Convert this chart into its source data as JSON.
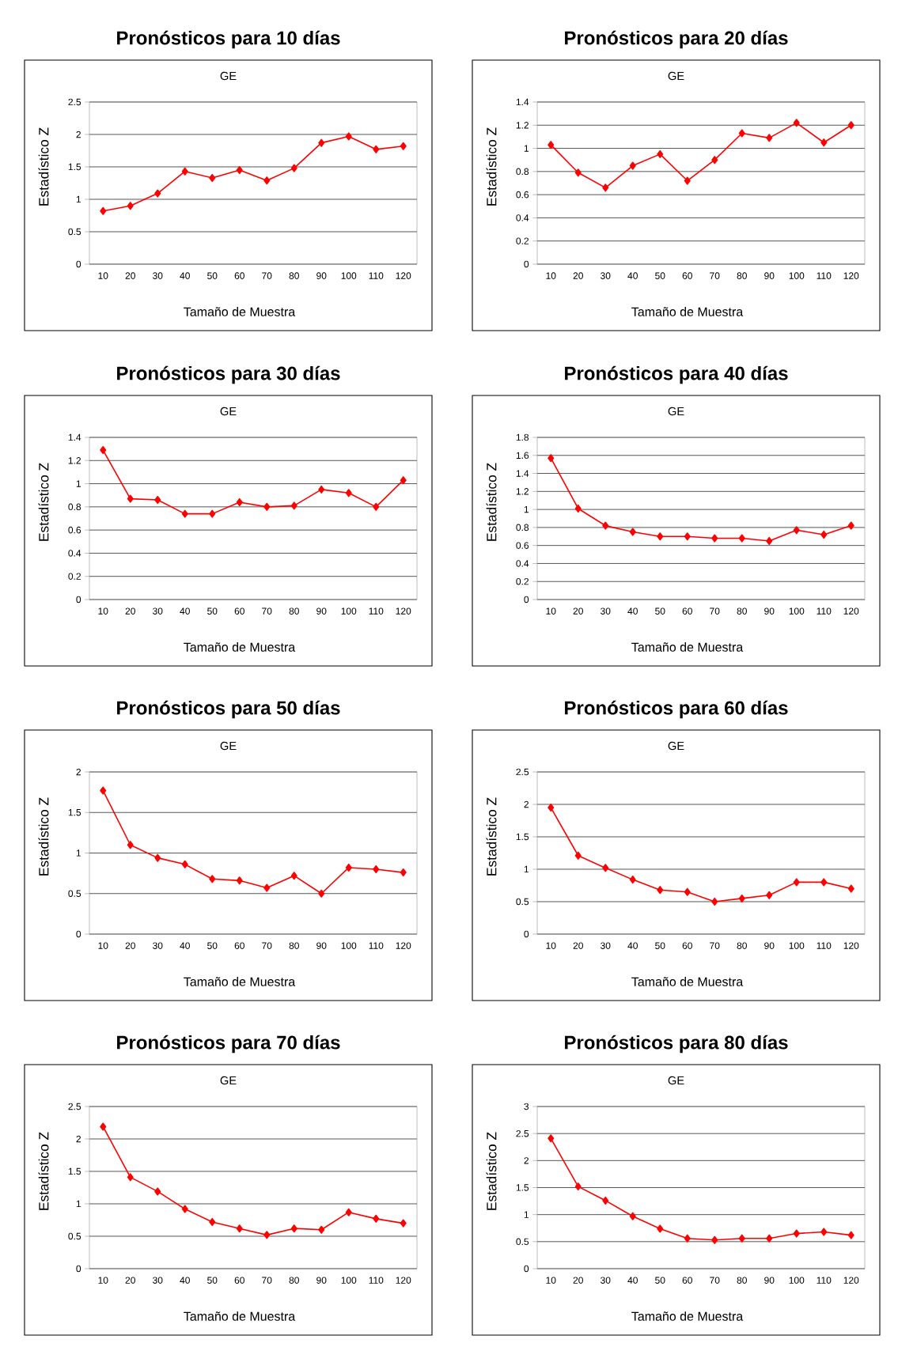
{
  "chart_data": [
    {
      "type": "line",
      "title": "Pronósticos para 10 días",
      "subtitle": "GE",
      "xlabel": "Tamaño de Muestra",
      "ylabel": "Estadístico Z",
      "categories": [
        "10",
        "20",
        "30",
        "40",
        "50",
        "60",
        "70",
        "80",
        "90",
        "100",
        "110",
        "120"
      ],
      "ylim": [
        0,
        2.5
      ],
      "yticks": [
        0,
        0.5,
        1,
        1.5,
        2,
        2.5
      ],
      "grid": "y",
      "marker": "diamond",
      "line_style": "solid",
      "series": [
        {
          "color": "#ff0000",
          "values": [
            0.82,
            0.9,
            1.09,
            1.43,
            1.33,
            1.45,
            1.29,
            1.48,
            1.87,
            1.97,
            1.77,
            1.82
          ]
        }
      ]
    },
    {
      "type": "line",
      "title": "Pronósticos para 20 días",
      "subtitle": "GE",
      "xlabel": "Tamaño de Muestra",
      "ylabel": "Estadístico Z",
      "categories": [
        "10",
        "20",
        "30",
        "40",
        "50",
        "60",
        "70",
        "80",
        "90",
        "100",
        "110",
        "120"
      ],
      "ylim": [
        0,
        1.4
      ],
      "yticks": [
        0,
        0.2,
        0.4,
        0.6,
        0.8,
        1,
        1.2,
        1.4
      ],
      "grid": "y",
      "marker": "diamond",
      "line_style": "solid",
      "series": [
        {
          "color": "#ff0000",
          "values": [
            1.03,
            0.79,
            0.66,
            0.85,
            0.95,
            0.72,
            0.9,
            1.13,
            1.09,
            1.22,
            1.05,
            1.2
          ]
        }
      ]
    },
    {
      "type": "line",
      "title": "Pronósticos para 30 días",
      "subtitle": "GE",
      "xlabel": "Tamaño de Muestra",
      "ylabel": "Estadístico Z",
      "categories": [
        "10",
        "20",
        "30",
        "40",
        "50",
        "60",
        "70",
        "80",
        "90",
        "100",
        "110",
        "120"
      ],
      "ylim": [
        0,
        1.4
      ],
      "yticks": [
        0,
        0.2,
        0.4,
        0.6,
        0.8,
        1,
        1.2,
        1.4
      ],
      "grid": "y",
      "marker": "diamond",
      "line_style": "solid",
      "series": [
        {
          "color": "#ff0000",
          "values": [
            1.29,
            0.87,
            0.86,
            0.74,
            0.74,
            0.84,
            0.8,
            0.81,
            0.95,
            0.92,
            0.8,
            1.03
          ]
        }
      ]
    },
    {
      "type": "line",
      "title": "Pronósticos para 40 días",
      "subtitle": "GE",
      "xlabel": "Tamaño de Muestra",
      "ylabel": "Estadístico Z",
      "categories": [
        "10",
        "20",
        "30",
        "40",
        "50",
        "60",
        "70",
        "80",
        "90",
        "100",
        "110",
        "120"
      ],
      "ylim": [
        0,
        1.8
      ],
      "yticks": [
        0,
        0.2,
        0.4,
        0.6,
        0.8,
        1,
        1.2,
        1.4,
        1.6,
        1.8
      ],
      "grid": "y",
      "marker": "diamond",
      "line_style": "solid",
      "series": [
        {
          "color": "#ff0000",
          "values": [
            1.57,
            1.01,
            0.82,
            0.75,
            0.7,
            0.7,
            0.68,
            0.68,
            0.65,
            0.77,
            0.72,
            0.82
          ]
        }
      ]
    },
    {
      "type": "line",
      "title": "Pronósticos para 50 días",
      "subtitle": "GE",
      "xlabel": "Tamaño de Muestra",
      "ylabel": "Estadístico Z",
      "categories": [
        "10",
        "20",
        "30",
        "40",
        "50",
        "60",
        "70",
        "80",
        "90",
        "100",
        "110",
        "120"
      ],
      "ylim": [
        0,
        2
      ],
      "yticks": [
        0,
        0.5,
        1,
        1.5,
        2
      ],
      "grid": "y",
      "marker": "diamond",
      "line_style": "solid",
      "series": [
        {
          "color": "#ff0000",
          "values": [
            1.77,
            1.1,
            0.94,
            0.86,
            0.68,
            0.66,
            0.57,
            0.72,
            0.5,
            0.82,
            0.8,
            0.76
          ]
        }
      ]
    },
    {
      "type": "line",
      "title": "Pronósticos para 60 días",
      "subtitle": "GE",
      "xlabel": "Tamaño de Muestra",
      "ylabel": "Estadístico Z",
      "categories": [
        "10",
        "20",
        "30",
        "40",
        "50",
        "60",
        "70",
        "80",
        "90",
        "100",
        "110",
        "120"
      ],
      "ylim": [
        0,
        2.5
      ],
      "yticks": [
        0,
        0.5,
        1,
        1.5,
        2,
        2.5
      ],
      "grid": "y",
      "marker": "diamond",
      "line_style": "solid",
      "series": [
        {
          "color": "#ff0000",
          "values": [
            1.95,
            1.21,
            1.02,
            0.84,
            0.68,
            0.65,
            0.5,
            0.55,
            0.6,
            0.8,
            0.8,
            0.7
          ]
        }
      ]
    },
    {
      "type": "line",
      "title": "Pronósticos para 70 días",
      "subtitle": "GE",
      "xlabel": "Tamaño de Muestra",
      "ylabel": "Estadístico Z",
      "categories": [
        "10",
        "20",
        "30",
        "40",
        "50",
        "60",
        "70",
        "80",
        "90",
        "100",
        "110",
        "120"
      ],
      "ylim": [
        0,
        2.5
      ],
      "yticks": [
        0,
        0.5,
        1,
        1.5,
        2,
        2.5
      ],
      "grid": "y",
      "marker": "diamond",
      "line_style": "solid",
      "series": [
        {
          "color": "#ff0000",
          "values": [
            2.19,
            1.41,
            1.19,
            0.92,
            0.72,
            0.62,
            0.52,
            0.62,
            0.6,
            0.87,
            0.77,
            0.7
          ]
        }
      ]
    },
    {
      "type": "line",
      "title": "Pronósticos para 80 días",
      "subtitle": "GE",
      "xlabel": "Tamaño de Muestra",
      "ylabel": "Estadístico Z",
      "categories": [
        "10",
        "20",
        "30",
        "40",
        "50",
        "60",
        "70",
        "80",
        "90",
        "100",
        "110",
        "120"
      ],
      "ylim": [
        0,
        3
      ],
      "yticks": [
        0,
        0.5,
        1,
        1.5,
        2,
        2.5,
        3
      ],
      "grid": "y",
      "marker": "diamond",
      "line_style": "solid",
      "series": [
        {
          "color": "#ff0000",
          "values": [
            2.41,
            1.52,
            1.26,
            0.97,
            0.74,
            0.56,
            0.53,
            0.56,
            0.56,
            0.65,
            0.68,
            0.62
          ]
        }
      ]
    }
  ]
}
